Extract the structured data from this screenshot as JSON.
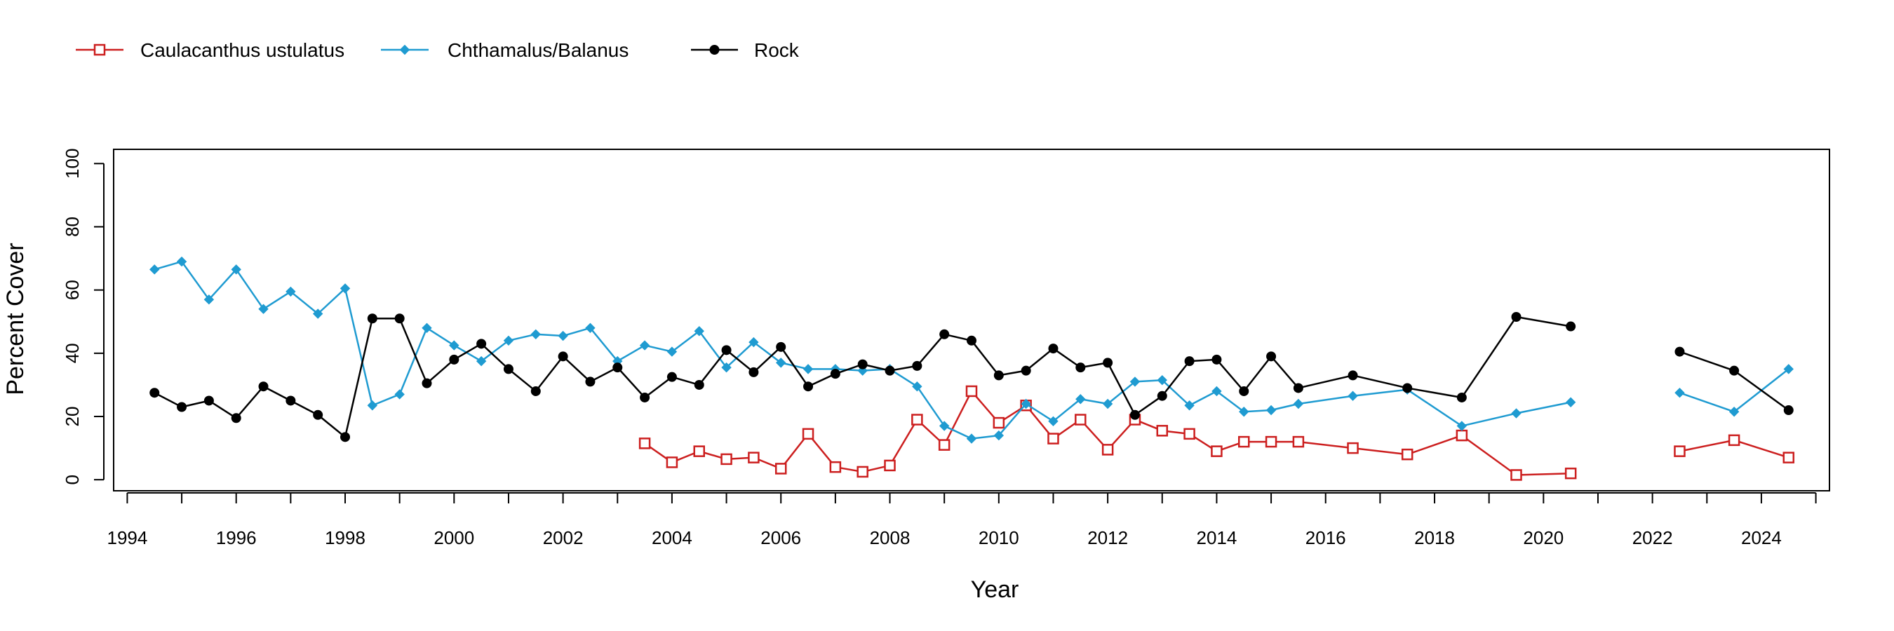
{
  "chart_data": {
    "type": "line",
    "xlabel": "Year",
    "ylabel": "Percent Cover",
    "xlim": [
      1993.75,
      2025.25
    ],
    "ylim": [
      -3.5,
      104.5
    ],
    "xticks": [
      1994,
      1996,
      1998,
      2000,
      2002,
      2004,
      2006,
      2008,
      2010,
      2012,
      2014,
      2016,
      2018,
      2020,
      2022,
      2024
    ],
    "xminor_ticks": [
      1995,
      1997,
      1999,
      2001,
      2003,
      2005,
      2007,
      2009,
      2011,
      2013,
      2015,
      2017,
      2019,
      2021,
      2023,
      2025
    ],
    "yticks": [
      0,
      20,
      40,
      60,
      80,
      100
    ],
    "legend_position": "top-left, outside plot, horizontal",
    "grid": false,
    "series": [
      {
        "name": "Caulacanthus ustulatus",
        "color": "#cc1f1f",
        "marker": "square-open",
        "points": [
          [
            2003.5,
            11.5
          ],
          [
            2004,
            5.5
          ],
          [
            2004.5,
            9
          ],
          [
            2005,
            6.5
          ],
          [
            2005.5,
            7
          ],
          [
            2006,
            3.5
          ],
          [
            2006.5,
            14.5
          ],
          [
            2007,
            4
          ],
          [
            2007.5,
            2.5
          ],
          [
            2008,
            4.5
          ],
          [
            2008.5,
            19
          ],
          [
            2009,
            11
          ],
          [
            2009.5,
            28
          ],
          [
            2010,
            18
          ],
          [
            2010.5,
            23.5
          ],
          [
            2011,
            13
          ],
          [
            2011.5,
            19
          ],
          [
            2012,
            9.5
          ],
          [
            2012.5,
            19
          ],
          [
            2013,
            15.5
          ],
          [
            2013.5,
            14.5
          ],
          [
            2014,
            9
          ],
          [
            2014.5,
            12
          ],
          [
            2015,
            12
          ],
          [
            2015.5,
            12
          ],
          [
            2016.5,
            10
          ],
          [
            2017.5,
            8
          ],
          [
            2018.5,
            14
          ],
          [
            2019.5,
            1.5
          ],
          [
            2020.5,
            2
          ],
          null,
          [
            2022.5,
            9
          ],
          [
            2023.5,
            12.5
          ],
          [
            2024.5,
            7
          ]
        ]
      },
      {
        "name": "Chthamalus/Balanus",
        "color": "#1f9bd1",
        "marker": "diamond-filled",
        "points": [
          [
            1994.5,
            66.5
          ],
          [
            1995,
            69
          ],
          [
            1995.5,
            57
          ],
          [
            1996,
            66.5
          ],
          [
            1996.5,
            54
          ],
          [
            1997,
            59.5
          ],
          [
            1997.5,
            52.5
          ],
          [
            1998,
            60.5
          ],
          [
            1998.5,
            23.5
          ],
          [
            1999,
            27
          ],
          [
            1999.5,
            48
          ],
          [
            2000,
            42.5
          ],
          [
            2000.5,
            37.5
          ],
          [
            2001,
            44
          ],
          [
            2001.5,
            46
          ],
          [
            2002,
            45.5
          ],
          [
            2002.5,
            48
          ],
          [
            2003,
            37.5
          ],
          [
            2003.5,
            42.5
          ],
          [
            2004,
            40.5
          ],
          [
            2004.5,
            47
          ],
          [
            2005,
            35.5
          ],
          [
            2005.5,
            43.5
          ],
          [
            2006,
            37
          ],
          [
            2006.5,
            35
          ],
          [
            2007,
            35
          ],
          [
            2007.5,
            34.5
          ],
          [
            2008,
            35
          ],
          [
            2008.5,
            29.5
          ],
          [
            2009,
            17
          ],
          [
            2009.5,
            13
          ],
          [
            2010,
            14
          ],
          [
            2010.5,
            24
          ],
          [
            2011,
            18.5
          ],
          [
            2011.5,
            25.5
          ],
          [
            2012,
            24
          ],
          [
            2012.5,
            31
          ],
          [
            2013,
            31.5
          ],
          [
            2013.5,
            23.5
          ],
          [
            2014,
            28
          ],
          [
            2014.5,
            21.5
          ],
          [
            2015,
            22
          ],
          [
            2015.5,
            24
          ],
          [
            2016.5,
            26.5
          ],
          [
            2017.5,
            28.5
          ],
          [
            2018.5,
            17
          ],
          [
            2019.5,
            21
          ],
          [
            2020.5,
            24.5
          ],
          null,
          [
            2022.5,
            27.5
          ],
          [
            2023.5,
            21.5
          ],
          [
            2024.5,
            35
          ]
        ]
      },
      {
        "name": "Rock",
        "color": "#000000",
        "marker": "circle-filled",
        "points": [
          [
            1994.5,
            27.5
          ],
          [
            1995,
            23
          ],
          [
            1995.5,
            25
          ],
          [
            1996,
            19.5
          ],
          [
            1996.5,
            29.5
          ],
          [
            1997,
            25
          ],
          [
            1997.5,
            20.5
          ],
          [
            1998,
            13.5
          ],
          [
            1998.5,
            51
          ],
          [
            1999,
            51
          ],
          [
            1999.5,
            30.5
          ],
          [
            2000,
            38
          ],
          [
            2000.5,
            43
          ],
          [
            2001,
            35
          ],
          [
            2001.5,
            28
          ],
          [
            2002,
            39
          ],
          [
            2002.5,
            31
          ],
          [
            2003,
            35.5
          ],
          [
            2003.5,
            26
          ],
          [
            2004,
            32.5
          ],
          [
            2004.5,
            30
          ],
          [
            2005,
            41
          ],
          [
            2005.5,
            34
          ],
          [
            2006,
            42
          ],
          [
            2006.5,
            29.5
          ],
          [
            2007,
            33.5
          ],
          [
            2007.5,
            36.5
          ],
          [
            2008,
            34.5
          ],
          [
            2008.5,
            36
          ],
          [
            2009,
            46
          ],
          [
            2009.5,
            44
          ],
          [
            2010,
            33
          ],
          [
            2010.5,
            34.5
          ],
          [
            2011,
            41.5
          ],
          [
            2011.5,
            35.5
          ],
          [
            2012,
            37
          ],
          [
            2012.5,
            20.5
          ],
          [
            2013,
            26.5
          ],
          [
            2013.5,
            37.5
          ],
          [
            2014,
            38
          ],
          [
            2014.5,
            28
          ],
          [
            2015,
            39
          ],
          [
            2015.5,
            29
          ],
          [
            2016.5,
            33
          ],
          [
            2017.5,
            29
          ],
          [
            2018.5,
            26
          ],
          [
            2019.5,
            51.5
          ],
          [
            2020.5,
            48.5
          ],
          null,
          [
            2022.5,
            40.5
          ],
          [
            2023.5,
            34.5
          ],
          [
            2024.5,
            22
          ]
        ]
      }
    ]
  }
}
